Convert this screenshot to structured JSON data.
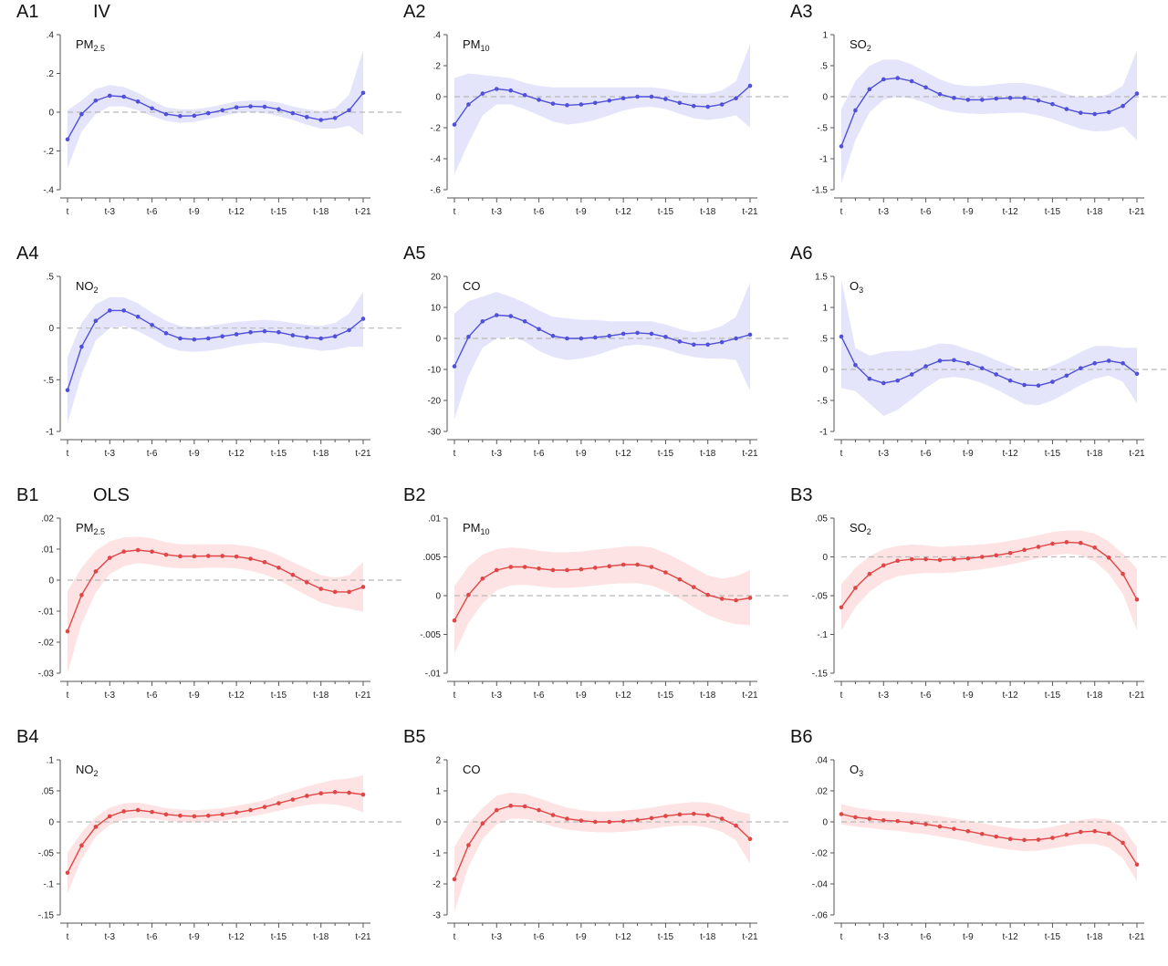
{
  "group_labels": {
    "iv": "IV",
    "ols": "OLS"
  },
  "colors": {
    "iv_line": "#5050d8",
    "iv_band": "#e4e5fb",
    "ols_line": "#e04646",
    "ols_band": "#fde3e3",
    "zero_line": "#b8b8b8",
    "axis": "#555555"
  },
  "x_ticks": [
    "t",
    "t-3",
    "t-6",
    "t-9",
    "t-12",
    "t-15",
    "t-18",
    "t-21"
  ],
  "chart_data": [
    {
      "id": "A1",
      "type": "line",
      "group": "IV",
      "pollutant_main": "PM",
      "pollutant_sub": "2.5",
      "ylim": [
        -0.4,
        0.4
      ],
      "yticks": [
        0.4,
        0.2,
        0,
        -0.2,
        -0.4
      ],
      "ytick_labels": [
        ".4",
        ".2",
        "0",
        "-.2",
        "-.4"
      ],
      "values": [
        -0.14,
        -0.01,
        0.06,
        0.085,
        0.08,
        0.055,
        0.02,
        -0.01,
        -0.02,
        -0.018,
        -0.005,
        0.01,
        0.025,
        0.03,
        0.028,
        0.015,
        -0.005,
        -0.025,
        -0.04,
        -0.03,
        0.01,
        0.1
      ],
      "lower": [
        -0.29,
        -0.1,
        -0.01,
        0.03,
        0.03,
        0.01,
        -0.02,
        -0.045,
        -0.055,
        -0.05,
        -0.035,
        -0.02,
        -0.005,
        0.0,
        -0.005,
        -0.02,
        -0.04,
        -0.065,
        -0.085,
        -0.085,
        -0.07,
        -0.12
      ],
      "upper": [
        0.01,
        0.06,
        0.12,
        0.14,
        0.13,
        0.1,
        0.06,
        0.025,
        0.015,
        0.015,
        0.025,
        0.04,
        0.055,
        0.06,
        0.06,
        0.05,
        0.03,
        0.015,
        0.005,
        0.02,
        0.09,
        0.32
      ]
    },
    {
      "id": "A2",
      "type": "line",
      "group": "IV",
      "pollutant_main": "PM",
      "pollutant_sub": "10",
      "ylim": [
        -0.6,
        0.4
      ],
      "yticks": [
        0.4,
        0.2,
        0,
        -0.2,
        -0.4,
        -0.6
      ],
      "ytick_labels": [
        ".4",
        ".2",
        "0",
        "-.2",
        "-.4",
        "-.6"
      ],
      "values": [
        -0.18,
        -0.05,
        0.02,
        0.05,
        0.04,
        0.01,
        -0.02,
        -0.045,
        -0.055,
        -0.05,
        -0.04,
        -0.025,
        -0.01,
        0.0,
        0.0,
        -0.015,
        -0.04,
        -0.06,
        -0.065,
        -0.05,
        -0.01,
        0.07
      ],
      "lower": [
        -0.5,
        -0.3,
        -0.12,
        -0.05,
        -0.05,
        -0.08,
        -0.12,
        -0.16,
        -0.18,
        -0.17,
        -0.15,
        -0.12,
        -0.09,
        -0.07,
        -0.065,
        -0.08,
        -0.11,
        -0.14,
        -0.15,
        -0.14,
        -0.12,
        -0.2
      ],
      "upper": [
        0.12,
        0.15,
        0.14,
        0.13,
        0.12,
        0.09,
        0.07,
        0.06,
        0.06,
        0.06,
        0.06,
        0.06,
        0.06,
        0.06,
        0.06,
        0.05,
        0.03,
        0.02,
        0.02,
        0.04,
        0.1,
        0.34
      ]
    },
    {
      "id": "A3",
      "type": "line",
      "group": "IV",
      "pollutant_main": "SO",
      "pollutant_sub": "2",
      "ylim": [
        -1.5,
        1
      ],
      "yticks": [
        1,
        0.5,
        0,
        -0.5,
        -1,
        -1.5
      ],
      "ytick_labels": [
        "1",
        ".5",
        "0",
        "-.5",
        "-1",
        "-1.5"
      ],
      "values": [
        -0.8,
        -0.22,
        0.12,
        0.28,
        0.3,
        0.25,
        0.15,
        0.04,
        -0.02,
        -0.05,
        -0.05,
        -0.03,
        -0.02,
        -0.02,
        -0.06,
        -0.12,
        -0.2,
        -0.26,
        -0.28,
        -0.25,
        -0.15,
        0.05
      ],
      "lower": [
        -1.4,
        -0.7,
        -0.25,
        -0.05,
        0.0,
        -0.03,
        -0.1,
        -0.2,
        -0.25,
        -0.27,
        -0.28,
        -0.27,
        -0.26,
        -0.26,
        -0.3,
        -0.36,
        -0.44,
        -0.52,
        -0.56,
        -0.55,
        -0.48,
        -0.7
      ],
      "upper": [
        -0.2,
        0.25,
        0.5,
        0.6,
        0.6,
        0.52,
        0.4,
        0.28,
        0.2,
        0.17,
        0.17,
        0.2,
        0.22,
        0.22,
        0.18,
        0.12,
        0.04,
        -0.01,
        -0.01,
        0.04,
        0.18,
        0.75
      ]
    },
    {
      "id": "A4",
      "type": "line",
      "group": "IV",
      "pollutant_main": "NO",
      "pollutant_sub": "2",
      "ylim": [
        -1,
        0.5
      ],
      "yticks": [
        0.5,
        0,
        -0.5,
        -1
      ],
      "ytick_labels": [
        ".5",
        "0",
        "-.5",
        "-1"
      ],
      "values": [
        -0.6,
        -0.18,
        0.07,
        0.17,
        0.17,
        0.11,
        0.03,
        -0.05,
        -0.1,
        -0.11,
        -0.1,
        -0.08,
        -0.06,
        -0.04,
        -0.03,
        -0.04,
        -0.07,
        -0.09,
        -0.1,
        -0.08,
        -0.02,
        0.09
      ],
      "lower": [
        -0.92,
        -0.45,
        -0.12,
        0.0,
        0.02,
        -0.03,
        -0.1,
        -0.18,
        -0.22,
        -0.23,
        -0.22,
        -0.2,
        -0.17,
        -0.15,
        -0.14,
        -0.15,
        -0.18,
        -0.2,
        -0.22,
        -0.21,
        -0.18,
        -0.18
      ],
      "upper": [
        -0.28,
        0.05,
        0.23,
        0.3,
        0.3,
        0.24,
        0.15,
        0.07,
        0.02,
        0.01,
        0.02,
        0.04,
        0.06,
        0.07,
        0.08,
        0.07,
        0.05,
        0.03,
        0.02,
        0.05,
        0.14,
        0.35
      ]
    },
    {
      "id": "A5",
      "type": "line",
      "group": "IV",
      "pollutant_main": "CO",
      "pollutant_sub": "",
      "ylim": [
        -30,
        20
      ],
      "yticks": [
        20,
        10,
        0,
        -10,
        -20,
        -30
      ],
      "ytick_labels": [
        "20",
        "10",
        "0",
        "-10",
        "-20",
        "-30"
      ],
      "values": [
        -9,
        0.5,
        5.5,
        7.5,
        7.2,
        5.5,
        3,
        0.8,
        0.0,
        0.0,
        0.3,
        0.8,
        1.5,
        1.8,
        1.5,
        0.5,
        -1,
        -2,
        -2,
        -1.2,
        0.0,
        1.2
      ],
      "lower": [
        -26,
        -12,
        -3,
        0,
        0.5,
        -1,
        -4,
        -6,
        -7,
        -6.5,
        -5.5,
        -4,
        -2.5,
        -2,
        -2.5,
        -3.5,
        -5,
        -6,
        -6.5,
        -6.5,
        -7,
        -17
      ],
      "upper": [
        8,
        12,
        13.5,
        15,
        13.5,
        11.5,
        9,
        7,
        6.5,
        6,
        6,
        5.5,
        5.5,
        5.5,
        5.5,
        4.5,
        3,
        2,
        2.5,
        4,
        7,
        18
      ]
    },
    {
      "id": "A6",
      "type": "line",
      "group": "IV",
      "pollutant_main": "O",
      "pollutant_sub": "3",
      "ylim": [
        -1,
        1.5
      ],
      "yticks": [
        1.5,
        1,
        0.5,
        0,
        -0.5,
        -1
      ],
      "ytick_labels": [
        "1.5",
        "1",
        ".5",
        "0",
        "-.5",
        "-1"
      ],
      "values": [
        0.53,
        0.07,
        -0.15,
        -0.22,
        -0.18,
        -0.08,
        0.05,
        0.14,
        0.15,
        0.1,
        0.02,
        -0.08,
        -0.18,
        -0.25,
        -0.26,
        -0.2,
        -0.1,
        0.02,
        0.1,
        0.14,
        0.1,
        -0.07
      ],
      "lower": [
        -0.3,
        -0.35,
        -0.55,
        -0.75,
        -0.65,
        -0.48,
        -0.3,
        -0.15,
        -0.12,
        -0.15,
        -0.22,
        -0.32,
        -0.44,
        -0.56,
        -0.58,
        -0.5,
        -0.38,
        -0.25,
        -0.15,
        -0.1,
        -0.2,
        -0.55
      ],
      "upper": [
        1.45,
        0.35,
        0.22,
        0.28,
        0.3,
        0.3,
        0.35,
        0.42,
        0.4,
        0.32,
        0.25,
        0.15,
        0.06,
        -0.02,
        -0.02,
        0.06,
        0.16,
        0.28,
        0.38,
        0.38,
        0.35,
        0.35
      ]
    },
    {
      "id": "B1",
      "type": "line",
      "group": "OLS",
      "pollutant_main": "PM",
      "pollutant_sub": "2.5",
      "ylim": [
        -0.03,
        0.02
      ],
      "yticks": [
        0.02,
        0.01,
        0,
        -0.01,
        -0.02,
        -0.03
      ],
      "ytick_labels": [
        ".02",
        ".01",
        "0",
        "-.01",
        "-.02",
        "-.03"
      ],
      "values": [
        -0.0165,
        -0.0048,
        0.0028,
        0.0072,
        0.0092,
        0.0097,
        0.0092,
        0.0082,
        0.0077,
        0.0077,
        0.0078,
        0.0078,
        0.0076,
        0.0069,
        0.0058,
        0.004,
        0.0017,
        -0.0007,
        -0.0028,
        -0.0038,
        -0.0038,
        -0.0022
      ],
      "lower": [
        -0.03,
        -0.014,
        -0.004,
        0.002,
        0.0045,
        0.0055,
        0.005,
        0.0042,
        0.0038,
        0.0038,
        0.004,
        0.004,
        0.0038,
        0.003,
        0.0018,
        0.0,
        -0.0025,
        -0.005,
        -0.0072,
        -0.0085,
        -0.0092,
        -0.0102
      ],
      "upper": [
        -0.0035,
        0.004,
        0.0095,
        0.0125,
        0.0138,
        0.014,
        0.0135,
        0.0122,
        0.0116,
        0.0115,
        0.0116,
        0.0116,
        0.0114,
        0.0108,
        0.0098,
        0.008,
        0.0058,
        0.0037,
        0.0016,
        0.0008,
        0.0016,
        0.0058
      ]
    },
    {
      "id": "B2",
      "type": "line",
      "group": "OLS",
      "pollutant_main": "PM",
      "pollutant_sub": "10",
      "ylim": [
        -0.01,
        0.01
      ],
      "yticks": [
        0.01,
        0.005,
        0,
        -0.005,
        -0.01
      ],
      "ytick_labels": [
        ".01",
        ".005",
        "0",
        "-.005",
        "-.01"
      ],
      "values": [
        -0.0032,
        0.0001,
        0.0022,
        0.0033,
        0.0037,
        0.0037,
        0.0035,
        0.0033,
        0.0033,
        0.0034,
        0.0036,
        0.0038,
        0.004,
        0.004,
        0.0037,
        0.003,
        0.0021,
        0.0011,
        0.0001,
        -0.0004,
        -0.0006,
        -0.0003
      ],
      "lower": [
        -0.0075,
        -0.0035,
        -0.001,
        0.0007,
        0.0013,
        0.0014,
        0.0012,
        0.001,
        0.001,
        0.0011,
        0.0013,
        0.0015,
        0.0016,
        0.0016,
        0.0013,
        0.0006,
        -0.0004,
        -0.0015,
        -0.0025,
        -0.0032,
        -0.0037,
        -0.0038
      ],
      "upper": [
        0.0012,
        0.0038,
        0.0053,
        0.006,
        0.0062,
        0.0061,
        0.0058,
        0.0056,
        0.0056,
        0.0057,
        0.0059,
        0.0061,
        0.0063,
        0.0064,
        0.0062,
        0.0055,
        0.0046,
        0.0036,
        0.0026,
        0.0022,
        0.0025,
        0.0033
      ]
    },
    {
      "id": "B3",
      "type": "line",
      "group": "OLS",
      "pollutant_main": "SO",
      "pollutant_sub": "2",
      "ylim": [
        -0.15,
        0.05
      ],
      "yticks": [
        0.05,
        0,
        -0.05,
        -0.1,
        -0.15
      ],
      "ytick_labels": [
        ".05",
        "0",
        "-.05",
        "-.1",
        "-.15"
      ],
      "values": [
        -0.065,
        -0.04,
        -0.022,
        -0.011,
        -0.005,
        -0.003,
        -0.003,
        -0.004,
        -0.003,
        -0.002,
        0.0,
        0.002,
        0.005,
        0.009,
        0.013,
        0.017,
        0.019,
        0.018,
        0.012,
        -0.001,
        -0.022,
        -0.055
      ],
      "lower": [
        -0.095,
        -0.065,
        -0.045,
        -0.032,
        -0.025,
        -0.022,
        -0.021,
        -0.021,
        -0.02,
        -0.018,
        -0.016,
        -0.013,
        -0.01,
        -0.006,
        -0.002,
        0.002,
        0.004,
        0.002,
        -0.006,
        -0.022,
        -0.048,
        -0.095
      ],
      "upper": [
        -0.035,
        -0.014,
        0.001,
        0.01,
        0.014,
        0.016,
        0.015,
        0.013,
        0.014,
        0.015,
        0.016,
        0.018,
        0.021,
        0.024,
        0.028,
        0.032,
        0.034,
        0.034,
        0.03,
        0.02,
        0.004,
        -0.015
      ]
    },
    {
      "id": "B4",
      "type": "line",
      "group": "OLS",
      "pollutant_main": "NO",
      "pollutant_sub": "2",
      "ylim": [
        -0.15,
        0.1
      ],
      "yticks": [
        0.1,
        0.05,
        0,
        -0.05,
        -0.1,
        -0.15
      ],
      "ytick_labels": [
        ".1",
        ".05",
        "0",
        "-.05",
        "-.1",
        "-.15"
      ],
      "values": [
        -0.082,
        -0.038,
        -0.008,
        0.009,
        0.017,
        0.019,
        0.016,
        0.012,
        0.01,
        0.009,
        0.01,
        0.012,
        0.015,
        0.019,
        0.024,
        0.03,
        0.036,
        0.042,
        0.046,
        0.048,
        0.047,
        0.044
      ],
      "lower": [
        -0.115,
        -0.06,
        -0.024,
        -0.005,
        0.004,
        0.007,
        0.005,
        0.002,
        0.0,
        -0.001,
        0.0,
        0.002,
        0.005,
        0.009,
        0.013,
        0.018,
        0.023,
        0.027,
        0.029,
        0.028,
        0.024,
        0.015
      ],
      "upper": [
        -0.05,
        -0.017,
        0.008,
        0.023,
        0.03,
        0.031,
        0.027,
        0.022,
        0.02,
        0.019,
        0.02,
        0.022,
        0.026,
        0.03,
        0.035,
        0.043,
        0.05,
        0.057,
        0.063,
        0.068,
        0.07,
        0.075
      ]
    },
    {
      "id": "B5",
      "type": "line",
      "group": "OLS",
      "pollutant_main": "CO",
      "pollutant_sub": "",
      "ylim": [
        -3,
        2
      ],
      "yticks": [
        2,
        1,
        0,
        -1,
        -2,
        -3
      ],
      "ytick_labels": [
        "2",
        "1",
        "0",
        "-1",
        "-2",
        "-3"
      ],
      "values": [
        -1.85,
        -0.75,
        -0.05,
        0.38,
        0.52,
        0.5,
        0.38,
        0.22,
        0.1,
        0.04,
        0.0,
        0.0,
        0.02,
        0.06,
        0.12,
        0.19,
        0.24,
        0.26,
        0.22,
        0.1,
        -0.12,
        -0.55
      ],
      "lower": [
        -2.9,
        -1.45,
        -0.55,
        -0.08,
        0.1,
        0.1,
        0.0,
        -0.15,
        -0.25,
        -0.3,
        -0.33,
        -0.34,
        -0.32,
        -0.28,
        -0.22,
        -0.16,
        -0.12,
        -0.12,
        -0.18,
        -0.32,
        -0.6,
        -1.35
      ],
      "upper": [
        -0.8,
        -0.05,
        0.45,
        0.85,
        0.95,
        0.9,
        0.76,
        0.6,
        0.46,
        0.38,
        0.33,
        0.33,
        0.36,
        0.4,
        0.46,
        0.54,
        0.6,
        0.64,
        0.62,
        0.52,
        0.35,
        0.25
      ]
    },
    {
      "id": "B6",
      "type": "line",
      "group": "OLS",
      "pollutant_main": "O",
      "pollutant_sub": "3",
      "ylim": [
        -0.06,
        0.04
      ],
      "yticks": [
        0.04,
        0.02,
        0,
        -0.02,
        -0.04,
        -0.06
      ],
      "ytick_labels": [
        ".04",
        ".02",
        "0",
        "-.02",
        "-.04",
        "-.06"
      ],
      "values": [
        0.005,
        0.003,
        0.002,
        0.001,
        0.0005,
        -0.0005,
        -0.0015,
        -0.003,
        -0.0045,
        -0.006,
        -0.0078,
        -0.0095,
        -0.011,
        -0.0117,
        -0.0115,
        -0.0103,
        -0.0083,
        -0.0065,
        -0.006,
        -0.0075,
        -0.0135,
        -0.0275
      ],
      "lower": [
        -0.0015,
        -0.003,
        -0.004,
        -0.005,
        -0.0058,
        -0.007,
        -0.008,
        -0.0096,
        -0.011,
        -0.0128,
        -0.0148,
        -0.0165,
        -0.018,
        -0.0188,
        -0.0185,
        -0.0172,
        -0.0155,
        -0.0142,
        -0.0142,
        -0.0165,
        -0.0235,
        -0.0385
      ],
      "upper": [
        0.0115,
        0.0092,
        0.0078,
        0.007,
        0.0066,
        0.0058,
        0.0048,
        0.0036,
        0.0022,
        0.0008,
        -0.0008,
        -0.0025,
        -0.004,
        -0.0046,
        -0.0044,
        -0.0032,
        -0.0012,
        0.0012,
        0.0022,
        0.0015,
        -0.0035,
        -0.0165
      ]
    }
  ]
}
